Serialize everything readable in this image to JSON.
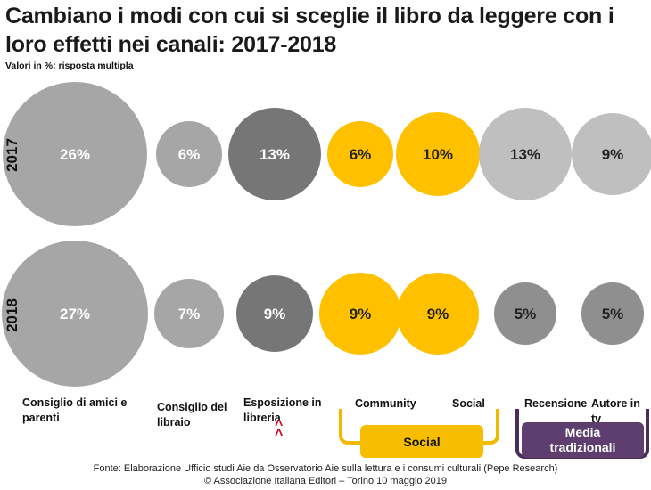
{
  "title": "Cambiano i modi con cui si sceglie il libro da leggere con i loro effetti nei canali: 2017-2018",
  "subtitle": "Valori in %; risposta multipla",
  "chart_data": {
    "type": "bubble",
    "unit": "%",
    "categories": [
      "Consiglio di amici e parenti",
      "Consiglio del libraio",
      "Esposizione in libreria",
      "Community",
      "Social",
      "Recensione",
      "Autore in tv"
    ],
    "series": [
      {
        "name": "2017",
        "values": [
          26,
          6,
          13,
          6,
          10,
          13,
          9
        ],
        "labels": [
          "26%",
          "6%",
          "13%",
          "6%",
          "10%",
          "13%",
          "9%"
        ]
      },
      {
        "name": "2018",
        "values": [
          27,
          7,
          9,
          9,
          9,
          5,
          5
        ],
        "labels": [
          "27%",
          "7%",
          "9%",
          "9%",
          "9%",
          "5%",
          "5%"
        ]
      }
    ],
    "groups": [
      {
        "label": "Social",
        "categories": [
          "Community",
          "Social"
        ]
      },
      {
        "label": "Media tradizionali",
        "categories": [
          "Recensione",
          "Autore in tv"
        ]
      }
    ]
  },
  "colors": {
    "light_grey": "#aaaaaa",
    "mid_grey": "#9c9c9c",
    "dark_grey": "#7a7a7a",
    "yellow": "#ffc000",
    "purple": "#5e3e6e",
    "arrow_red": "#d0021b"
  },
  "bubble_colors_2017": [
    "#a6a6a6",
    "#a6a6a6",
    "#767676",
    "#ffc000",
    "#ffc000",
    "#bfbfbf",
    "#bfbfbf"
  ],
  "bubble_colors_2018": [
    "#a6a6a6",
    "#a6a6a6",
    "#767676",
    "#ffc000",
    "#ffc000",
    "#8f8f8f",
    "#8f8f8f"
  ],
  "labels": {
    "cat1": "Consiglio di amici e parenti",
    "cat2": "Consiglio del libraio",
    "cat3": "Esposizione in libreria",
    "cat4": "Community",
    "cat5": "Social",
    "cat6": "Recensione",
    "cat7": "Autore in tv",
    "group_social": "Social",
    "group_media": "Media tradizionali",
    "arrow": "^\n^"
  },
  "footer": {
    "source": "Fonte:  Elaborazione Ufficio studi Aie da Osservatorio Aie sulla lettura e i consumi culturali (Pepe Research)",
    "copyright": "© Associazione Italiana Editori – Torino 10 maggio 2019"
  }
}
